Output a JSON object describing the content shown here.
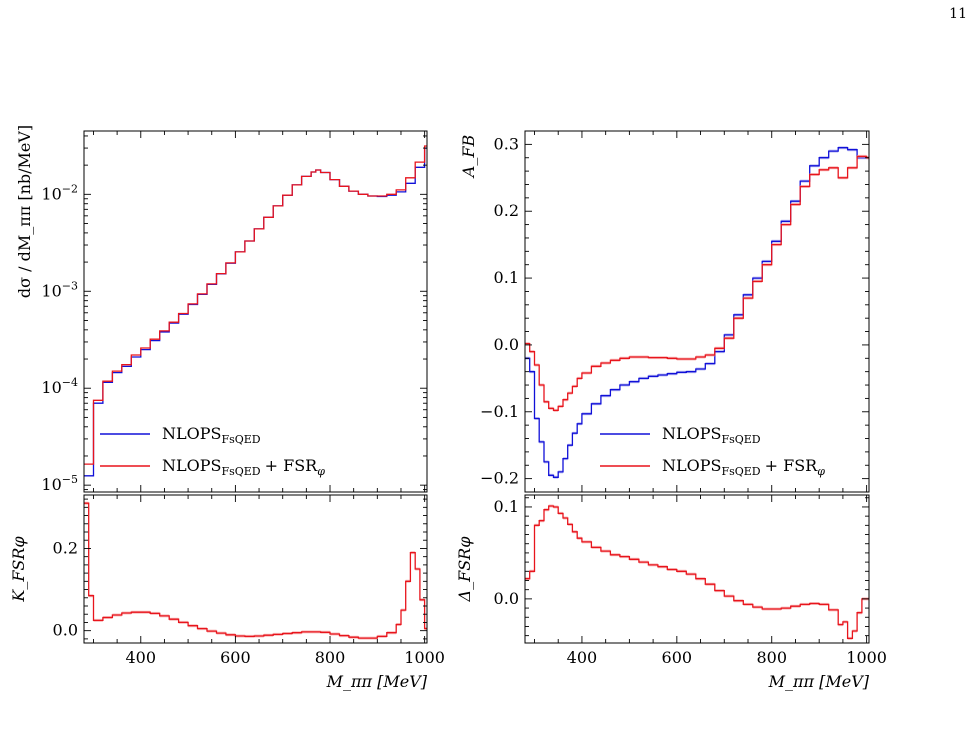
{
  "page": {
    "number": "11"
  },
  "colors": {
    "nlops": "#1010d8",
    "fsr": "#e8141c",
    "fsr_band": "#f6a0a0",
    "nlops_band": "#a8a8f0"
  },
  "legend": {
    "nlops": {
      "base": "NLOPS",
      "sub": "FsQED"
    },
    "fsr": {
      "base": "NLOPS",
      "sub": "FsQED",
      "plus": "+ FSR",
      "sub2": "φ"
    }
  },
  "chart_data": [
    {
      "id": "dsigma",
      "type": "line",
      "step": true,
      "ylabel": "dσ / dM_ππ [nb/MeV]",
      "yscale": "log",
      "ylim": [
        8.5e-06,
        0.045
      ],
      "xlim": [
        280,
        1005
      ],
      "yticks": [
        {
          "v": 1e-05,
          "b": "10",
          "e": "−5"
        },
        {
          "v": 0.0001,
          "b": "10",
          "e": "−4"
        },
        {
          "v": 0.001,
          "b": "10",
          "e": "−3"
        },
        {
          "v": 0.01,
          "b": "10",
          "e": "−2"
        }
      ],
      "legend_position": "lower-left",
      "x": [
        280,
        300,
        320,
        340,
        360,
        380,
        400,
        420,
        440,
        460,
        480,
        500,
        520,
        540,
        560,
        580,
        600,
        620,
        640,
        660,
        680,
        700,
        720,
        740,
        760,
        770,
        780,
        800,
        820,
        840,
        860,
        880,
        900,
        920,
        940,
        960,
        980,
        1000
      ],
      "series": [
        {
          "name": "NLOPS_FsQED",
          "values": [
            1.25e-05,
            7e-05,
            0.000115,
            0.000145,
            0.000168,
            0.00021,
            0.00025,
            0.00031,
            0.00038,
            0.00047,
            0.00058,
            0.00073,
            0.00093,
            0.00118,
            0.00151,
            0.00195,
            0.00255,
            0.0033,
            0.0044,
            0.0058,
            0.0076,
            0.0098,
            0.0125,
            0.0153,
            0.017,
            0.0178,
            0.0168,
            0.0142,
            0.0121,
            0.0108,
            0.01,
            0.0096,
            0.0095,
            0.0098,
            0.0106,
            0.013,
            0.019,
            0.03
          ]
        },
        {
          "name": "NLOPS_FsQED + FSR_φ",
          "values": [
            1.65e-05,
            7.5e-05,
            0.000118,
            0.00015,
            0.000175,
            0.00022,
            0.00026,
            0.00032,
            0.00039,
            0.00048,
            0.00059,
            0.00074,
            0.00094,
            0.00119,
            0.00152,
            0.00196,
            0.00255,
            0.0033,
            0.0044,
            0.0058,
            0.0076,
            0.0098,
            0.0125,
            0.0153,
            0.017,
            0.0178,
            0.0168,
            0.0142,
            0.0121,
            0.0108,
            0.01,
            0.0096,
            0.0096,
            0.01,
            0.0111,
            0.0148,
            0.0215,
            0.0315
          ]
        }
      ]
    },
    {
      "id": "K",
      "type": "line",
      "step": true,
      "ylabel": "K_FSRφ",
      "xlabel": "M_ππ [MeV]",
      "xlim": [
        280,
        1005
      ],
      "ylim": [
        -0.03,
        0.33
      ],
      "xticks": [
        400,
        600,
        800,
        1000
      ],
      "yticks": [
        0.0,
        0.2
      ],
      "x": [
        280,
        290,
        300,
        320,
        340,
        360,
        380,
        400,
        420,
        440,
        460,
        480,
        500,
        520,
        540,
        560,
        580,
        600,
        620,
        640,
        660,
        680,
        700,
        720,
        740,
        760,
        780,
        800,
        820,
        840,
        860,
        880,
        900,
        920,
        940,
        950,
        960,
        970,
        980,
        990,
        1000
      ],
      "series": [
        {
          "name": "NLOPS_FsQED + FSR_φ",
          "values": [
            0.31,
            0.085,
            0.025,
            0.032,
            0.038,
            0.043,
            0.045,
            0.045,
            0.042,
            0.036,
            0.028,
            0.02,
            0.012,
            0.005,
            -0.001,
            -0.006,
            -0.01,
            -0.013,
            -0.014,
            -0.013,
            -0.011,
            -0.009,
            -0.007,
            -0.005,
            -0.003,
            -0.003,
            -0.004,
            -0.008,
            -0.012,
            -0.016,
            -0.018,
            -0.018,
            -0.014,
            -0.005,
            0.015,
            0.05,
            0.12,
            0.19,
            0.15,
            0.075,
            0.005
          ]
        }
      ]
    },
    {
      "id": "AFB",
      "type": "line",
      "step": true,
      "ylabel": "A_FB",
      "xlim": [
        280,
        1005
      ],
      "ylim": [
        -0.22,
        0.32
      ],
      "yticks": [
        -0.2,
        -0.1,
        0.0,
        0.1,
        0.2,
        0.3
      ],
      "legend_position": "lower-right",
      "x": [
        280,
        290,
        300,
        310,
        320,
        330,
        340,
        350,
        360,
        370,
        380,
        390,
        400,
        420,
        440,
        460,
        480,
        500,
        520,
        540,
        560,
        580,
        600,
        620,
        640,
        660,
        680,
        700,
        720,
        740,
        760,
        780,
        800,
        820,
        840,
        860,
        880,
        900,
        920,
        940,
        960,
        980,
        1000
      ],
      "series": [
        {
          "name": "NLOPS_FsQED",
          "values": [
            -0.02,
            -0.04,
            -0.11,
            -0.145,
            -0.175,
            -0.195,
            -0.198,
            -0.19,
            -0.17,
            -0.15,
            -0.132,
            -0.118,
            -0.103,
            -0.088,
            -0.076,
            -0.067,
            -0.06,
            -0.055,
            -0.05,
            -0.047,
            -0.045,
            -0.043,
            -0.041,
            -0.04,
            -0.036,
            -0.028,
            -0.01,
            0.015,
            0.045,
            0.075,
            0.1,
            0.125,
            0.155,
            0.185,
            0.215,
            0.245,
            0.268,
            0.28,
            0.29,
            0.295,
            0.292,
            0.28,
            0.28
          ]
        },
        {
          "name": "NLOPS_FsQED + FSR_φ",
          "values": [
            0.002,
            -0.01,
            -0.03,
            -0.06,
            -0.085,
            -0.095,
            -0.098,
            -0.092,
            -0.082,
            -0.072,
            -0.062,
            -0.05,
            -0.042,
            -0.032,
            -0.027,
            -0.023,
            -0.02,
            -0.018,
            -0.018,
            -0.019,
            -0.019,
            -0.02,
            -0.021,
            -0.021,
            -0.018,
            -0.015,
            -0.005,
            0.01,
            0.04,
            0.07,
            0.095,
            0.12,
            0.15,
            0.18,
            0.21,
            0.237,
            0.255,
            0.262,
            0.265,
            0.25,
            0.265,
            0.282,
            0.28
          ]
        }
      ]
    },
    {
      "id": "Delta",
      "type": "line",
      "step": true,
      "ylabel": "Δ_FSRφ",
      "xlabel": "M_ππ [MeV]",
      "xlim": [
        280,
        1005
      ],
      "ylim": [
        -0.048,
        0.113
      ],
      "xticks": [
        400,
        600,
        800,
        1000
      ],
      "yticks": [
        0.0,
        0.1
      ],
      "x": [
        280,
        290,
        300,
        310,
        320,
        330,
        340,
        350,
        360,
        370,
        380,
        390,
        400,
        420,
        440,
        460,
        480,
        500,
        520,
        540,
        560,
        580,
        600,
        620,
        640,
        660,
        680,
        700,
        720,
        740,
        760,
        780,
        800,
        820,
        840,
        860,
        880,
        900,
        920,
        940,
        950,
        960,
        970,
        980,
        990,
        1000
      ],
      "series": [
        {
          "name": "NLOPS_FsQED + FSR_φ",
          "values": [
            0.022,
            0.03,
            0.08,
            0.085,
            0.097,
            0.101,
            0.1,
            0.093,
            0.088,
            0.081,
            0.073,
            0.066,
            0.062,
            0.056,
            0.052,
            0.048,
            0.046,
            0.043,
            0.04,
            0.037,
            0.035,
            0.032,
            0.03,
            0.027,
            0.022,
            0.016,
            0.009,
            0.003,
            -0.002,
            -0.006,
            -0.009,
            -0.011,
            -0.011,
            -0.01,
            -0.008,
            -0.006,
            -0.005,
            -0.006,
            -0.012,
            -0.028,
            -0.025,
            -0.043,
            -0.035,
            -0.015,
            0.0,
            0.0
          ]
        }
      ]
    }
  ]
}
